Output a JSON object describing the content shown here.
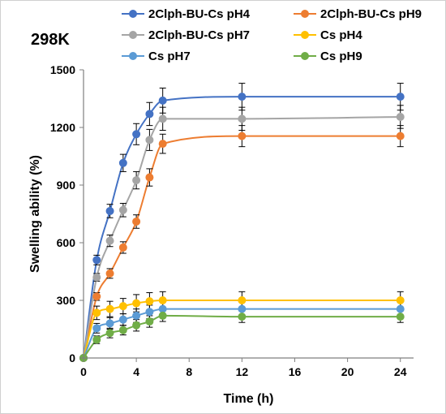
{
  "chart_data": {
    "type": "line",
    "title": "",
    "annotation": "298K",
    "xlabel": "Time (h)",
    "ylabel": "Swelling ability (%)",
    "xlim": [
      0,
      25
    ],
    "ylim": [
      0,
      1500
    ],
    "x_ticks": [
      0,
      4,
      8,
      12,
      16,
      20,
      24
    ],
    "y_ticks": [
      0,
      300,
      600,
      900,
      1200,
      1500
    ],
    "x_tick_labels": [
      "0",
      "4",
      "8",
      "12",
      "16",
      "20",
      "24"
    ],
    "y_tick_labels": [
      "0",
      "300",
      "600",
      "900",
      "1200",
      "1500"
    ],
    "grid": false,
    "legend_position": "top",
    "x": [
      0,
      1,
      2,
      3,
      4,
      5,
      6,
      12,
      24
    ],
    "series": [
      {
        "name": "2Clph-BU-Cs pH4",
        "color": "#4472C4",
        "values": [
          0,
          510,
          765,
          1015,
          1165,
          1270,
          1340,
          1360,
          1360
        ],
        "errors": [
          0,
          25,
          35,
          45,
          55,
          60,
          65,
          70,
          70
        ]
      },
      {
        "name": "2Clph-BU-Cs pH9",
        "color": "#ED7D31",
        "values": [
          0,
          320,
          440,
          575,
          710,
          940,
          1115,
          1155,
          1155
        ],
        "errors": [
          0,
          20,
          25,
          30,
          35,
          45,
          50,
          55,
          55
        ]
      },
      {
        "name": "2Clph-BU-Cs pH7",
        "color": "#A5A5A5",
        "values": [
          0,
          420,
          610,
          770,
          925,
          1135,
          1245,
          1245,
          1255
        ],
        "errors": [
          0,
          20,
          30,
          35,
          45,
          55,
          60,
          60,
          60
        ]
      },
      {
        "name": "Cs pH4",
        "color": "#FFC000",
        "values": [
          0,
          235,
          255,
          270,
          285,
          295,
          300,
          300,
          300
        ],
        "errors": [
          0,
          35,
          40,
          40,
          45,
          45,
          45,
          45,
          45
        ]
      },
      {
        "name": "Cs pH7",
        "color": "#5B9BD5",
        "values": [
          0,
          155,
          180,
          200,
          220,
          240,
          255,
          255,
          255
        ],
        "errors": [
          0,
          25,
          30,
          30,
          35,
          35,
          40,
          40,
          40
        ]
      },
      {
        "name": "Cs pH9",
        "color": "#70AD47",
        "values": [
          0,
          95,
          130,
          145,
          170,
          190,
          220,
          215,
          215
        ],
        "errors": [
          0,
          20,
          25,
          25,
          30,
          30,
          30,
          30,
          30
        ]
      }
    ]
  }
}
